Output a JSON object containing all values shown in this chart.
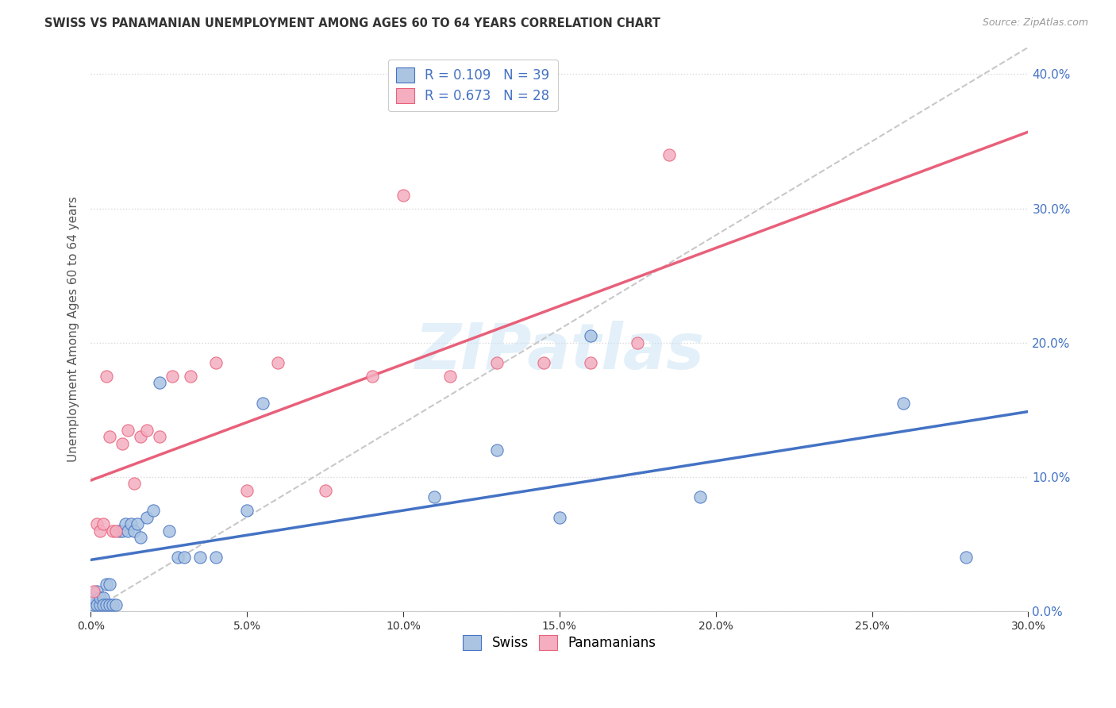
{
  "title": "SWISS VS PANAMANIAN UNEMPLOYMENT AMONG AGES 60 TO 64 YEARS CORRELATION CHART",
  "source": "Source: ZipAtlas.com",
  "ylabel": "Unemployment Among Ages 60 to 64 years",
  "xlim": [
    0.0,
    0.3
  ],
  "ylim": [
    0.0,
    0.42
  ],
  "xticks": [
    0.0,
    0.05,
    0.1,
    0.15,
    0.2,
    0.25,
    0.3
  ],
  "yticks_right": [
    0.0,
    0.1,
    0.2,
    0.3,
    0.4
  ],
  "swiss_color": "#aac4e2",
  "swiss_line_color": "#4472c4",
  "panama_color": "#f4aec0",
  "panama_line_color": "#e8607a",
  "diagonal_color": "#c8c8c8",
  "swiss_R": 0.109,
  "swiss_N": 39,
  "panama_R": 0.673,
  "panama_N": 28,
  "swiss_x": [
    0.001,
    0.001,
    0.002,
    0.002,
    0.003,
    0.003,
    0.004,
    0.004,
    0.005,
    0.005,
    0.006,
    0.006,
    0.007,
    0.008,
    0.009,
    0.01,
    0.011,
    0.012,
    0.013,
    0.014,
    0.015,
    0.016,
    0.018,
    0.02,
    0.022,
    0.025,
    0.028,
    0.03,
    0.035,
    0.04,
    0.05,
    0.055,
    0.11,
    0.13,
    0.15,
    0.16,
    0.195,
    0.26,
    0.28
  ],
  "swiss_y": [
    0.005,
    0.01,
    0.005,
    0.015,
    0.005,
    0.01,
    0.01,
    0.005,
    0.02,
    0.005,
    0.02,
    0.005,
    0.005,
    0.005,
    0.06,
    0.06,
    0.065,
    0.06,
    0.065,
    0.06,
    0.065,
    0.055,
    0.07,
    0.075,
    0.17,
    0.06,
    0.04,
    0.04,
    0.04,
    0.04,
    0.075,
    0.155,
    0.085,
    0.12,
    0.07,
    0.205,
    0.085,
    0.155,
    0.04
  ],
  "panama_x": [
    0.001,
    0.002,
    0.003,
    0.004,
    0.005,
    0.006,
    0.007,
    0.008,
    0.01,
    0.012,
    0.014,
    0.016,
    0.018,
    0.022,
    0.026,
    0.032,
    0.04,
    0.05,
    0.06,
    0.075,
    0.09,
    0.1,
    0.115,
    0.13,
    0.145,
    0.16,
    0.175,
    0.185
  ],
  "panama_y": [
    0.015,
    0.065,
    0.06,
    0.065,
    0.175,
    0.13,
    0.06,
    0.06,
    0.125,
    0.135,
    0.095,
    0.13,
    0.135,
    0.13,
    0.175,
    0.175,
    0.185,
    0.09,
    0.185,
    0.09,
    0.175,
    0.31,
    0.175,
    0.185,
    0.185,
    0.185,
    0.2,
    0.34
  ],
  "legend_labels": [
    "Swiss",
    "Panamanians"
  ],
  "watermark": "ZIPatlas",
  "background_color": "#ffffff",
  "grid_color": "#d8d8d8"
}
